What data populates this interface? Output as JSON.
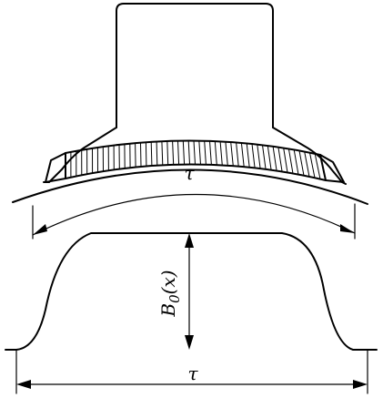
{
  "labels": {
    "pole_span_top": "τ",
    "pole_span_bottom": "τ",
    "flux_density": "B0(x)"
  },
  "colors": {
    "ink": "#000000",
    "background": "#ffffff"
  }
}
